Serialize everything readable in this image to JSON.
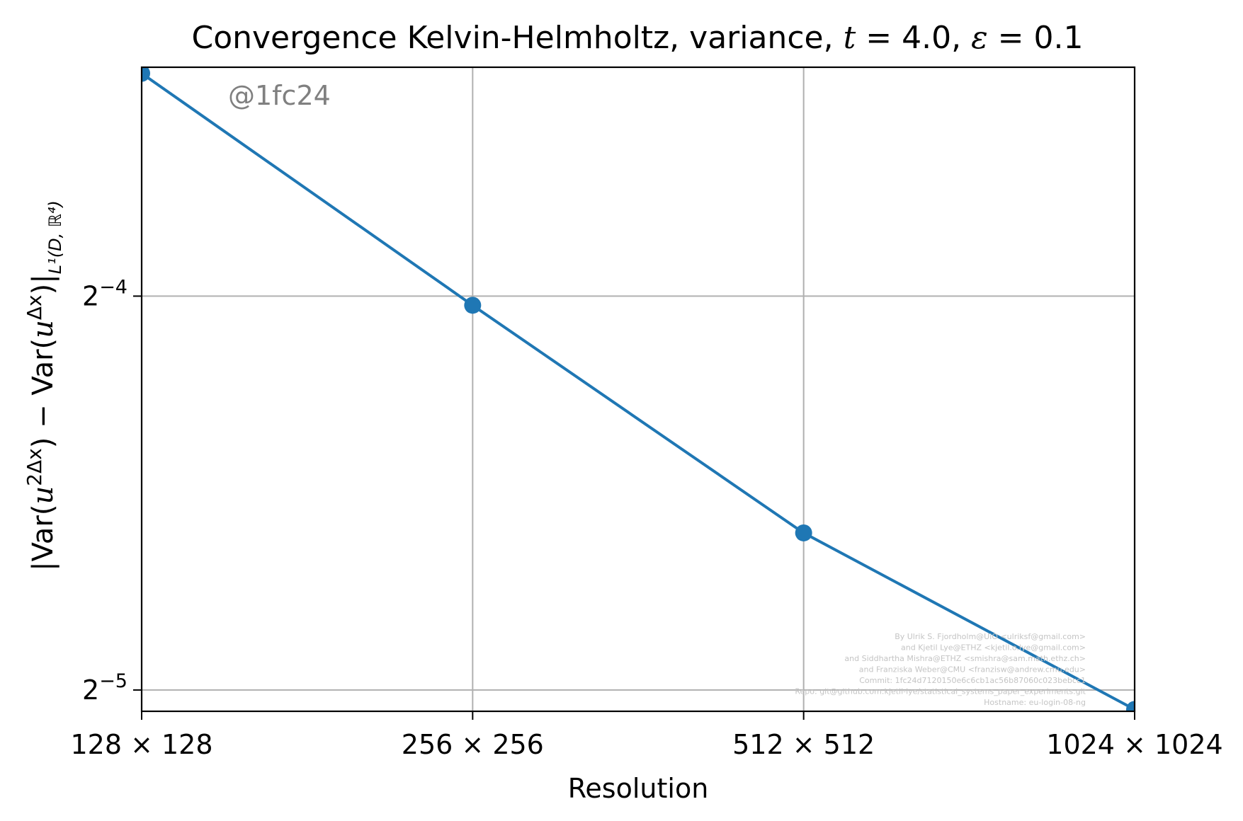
{
  "chart_data": {
    "type": "line",
    "title": {
      "prefix": "Convergence Kelvin-Helmholtz, variance, ",
      "t_var": "t",
      "t_value": "4.0",
      "eps_var": "ε",
      "eps_value": "0.1"
    },
    "xlabel": "Resolution",
    "ylabel": {
      "part1": "|Var(",
      "u1": "u",
      "sup1": "2Δx",
      "part2": ") − Var(",
      "u2": "u",
      "sup2": "Δx",
      "part3": ")|",
      "sub": "L¹(D, ℝ⁴)"
    },
    "categories": [
      "128 × 128",
      "256 × 256",
      "512 × 512",
      "1024 × 1024"
    ],
    "yscale": "log2",
    "yticks": [
      {
        "base": "2",
        "exp": "−4",
        "value": 0.0625
      },
      {
        "base": "2",
        "exp": "−5",
        "value": 0.03125
      }
    ],
    "ylim": [
      0.0301,
      0.0935
    ],
    "series": [
      {
        "values": [
          0.0925,
          0.0615,
          0.0412,
          0.0302
        ],
        "color": "#1f77b4",
        "marker": "circle"
      }
    ],
    "grid": true,
    "annotation": "@1fc24",
    "credits": [
      "By Ulrik S. Fjordholm@UiO <ulriksf@gmail.com>",
      "and Kjetil Lye@ETHZ <kjetil.o.lye@gmail.com>",
      "and Siddhartha Mishra@ETHZ <smishra@sam.math.ethz.ch>",
      "and Franziska Weber@CMU <franzisw@andrew.cmu.edu>",
      "Commit: 1fc24d7120150e6c6cb1ac56b87060c023bebcc1",
      "Repo: git@github.com:kjetil-lye/statistical_systems_paper_experiments.git",
      "Hostname: eu-login-08-ng"
    ]
  }
}
